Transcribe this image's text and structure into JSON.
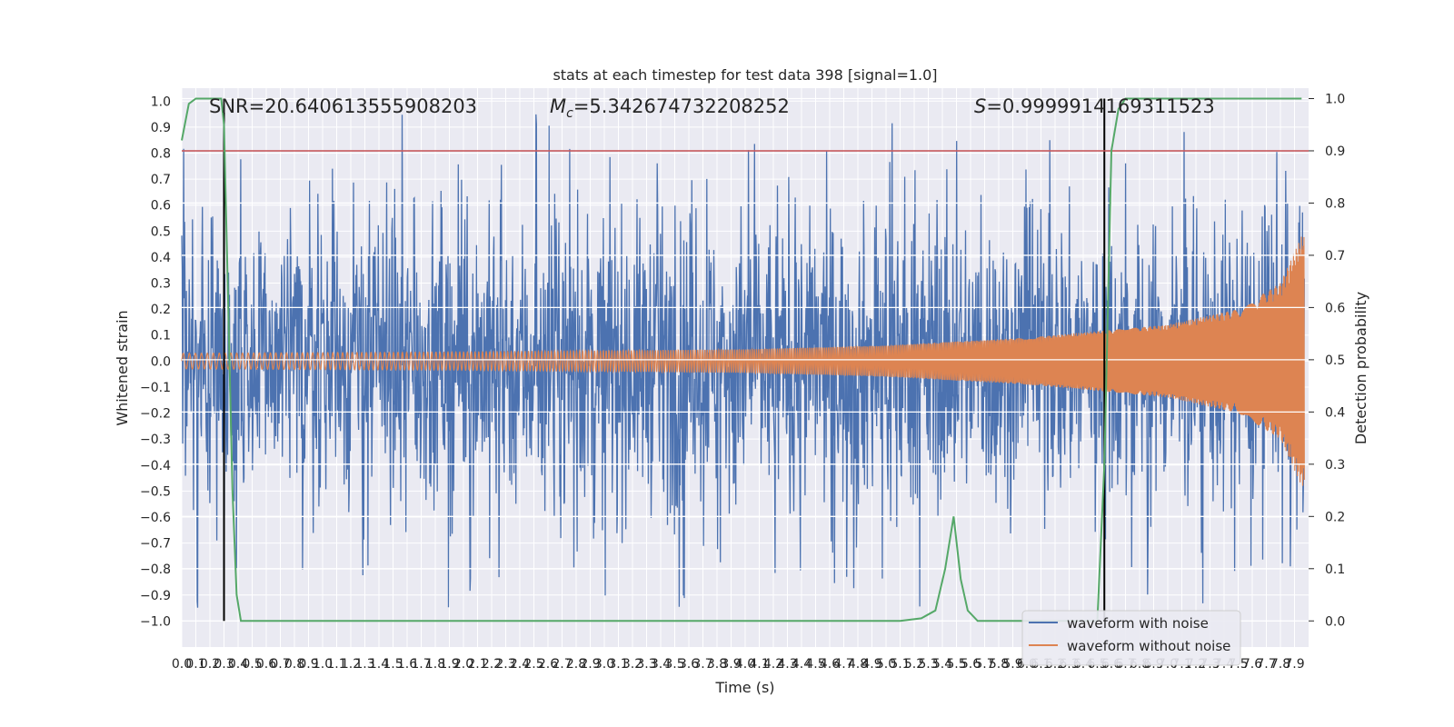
{
  "chart_data": {
    "type": "line",
    "title": "stats at each timestep for test data 398 [signal=1.0]",
    "xlabel": "Time (s)",
    "ylabel": "Whitened strain",
    "y2label": "Detection probability",
    "xlim": [
      0.0,
      8.0
    ],
    "ylim": [
      -1.1,
      1.05
    ],
    "y2lim": [
      -0.05,
      1.02
    ],
    "grid": true,
    "legend_position": "lower-right",
    "x_ticks": [
      "0.0",
      "0.1",
      "0.2",
      "0.3",
      "0.4",
      "0.5",
      "0.6",
      "0.7",
      "0.8",
      "0.9",
      "1.0",
      "1.1",
      "1.2",
      "1.3",
      "1.4",
      "1.5",
      "1.6",
      "1.7",
      "1.8",
      "1.9",
      "2.0",
      "2.1",
      "2.2",
      "2.3",
      "2.4",
      "2.5",
      "2.6",
      "2.7",
      "2.8",
      "2.9",
      "3.0",
      "3.1",
      "3.2",
      "3.3",
      "3.4",
      "3.5",
      "3.6",
      "3.7",
      "3.8",
      "3.9",
      "4.0",
      "4.1",
      "4.2",
      "4.3",
      "4.4",
      "4.5",
      "4.6",
      "4.7",
      "4.8",
      "4.9",
      "5.0",
      "5.1",
      "5.2",
      "5.3",
      "5.4",
      "5.5",
      "5.6",
      "5.7",
      "5.8",
      "5.9",
      "6.0",
      "6.1",
      "6.2",
      "6.3",
      "6.4",
      "6.5",
      "6.6",
      "6.7",
      "6.8",
      "6.9",
      "7.0",
      "7.1",
      "7.2",
      "7.3",
      "7.4",
      "7.5",
      "7.6",
      "7.7",
      "7.8",
      "7.9"
    ],
    "y_ticks": [
      "1.0",
      "0.9",
      "0.8",
      "0.7",
      "0.6",
      "0.5",
      "0.4",
      "0.3",
      "0.2",
      "0.1",
      "0.0",
      "−0.1",
      "−0.2",
      "−0.3",
      "−0.4",
      "−0.5",
      "−0.6",
      "−0.7",
      "−0.8",
      "−0.9",
      "−1.0"
    ],
    "y_tick_values": [
      1.0,
      0.9,
      0.8,
      0.7,
      0.6,
      0.5,
      0.4,
      0.3,
      0.2,
      0.1,
      0.0,
      -0.1,
      -0.2,
      -0.3,
      -0.4,
      -0.5,
      -0.6,
      -0.7,
      -0.8,
      -0.9,
      -1.0
    ],
    "y2_ticks": [
      "1.0",
      "0.9",
      "0.8",
      "0.7",
      "0.6",
      "0.5",
      "0.4",
      "0.3",
      "0.2",
      "0.1",
      "0.0"
    ],
    "y2_tick_values": [
      1.0,
      0.9,
      0.8,
      0.7,
      0.6,
      0.5,
      0.4,
      0.3,
      0.2,
      0.1,
      0.0
    ],
    "series": [
      {
        "name": "waveform with noise",
        "color": "#4c72b0",
        "axis": "left",
        "description": "whitened noisy strain, roughly -1.0 to 0.95"
      },
      {
        "name": "waveform without noise",
        "color": "#dd8452",
        "axis": "left",
        "description": "chirp amplitude rising from ~0.03 to ~0.5 at t=8s",
        "envelope": [
          [
            0.0,
            0.03
          ],
          [
            2.0,
            0.035
          ],
          [
            4.0,
            0.045
          ],
          [
            5.0,
            0.06
          ],
          [
            6.0,
            0.09
          ],
          [
            7.0,
            0.14
          ],
          [
            7.5,
            0.2
          ],
          [
            7.8,
            0.3
          ],
          [
            7.95,
            0.48
          ]
        ]
      },
      {
        "name": "detection probability",
        "color": "#55a868",
        "axis": "right",
        "legend": false,
        "points": [
          [
            0.0,
            0.92
          ],
          [
            0.05,
            0.99
          ],
          [
            0.1,
            1.0
          ],
          [
            0.28,
            1.0
          ],
          [
            0.3,
            0.95
          ],
          [
            0.33,
            0.6
          ],
          [
            0.36,
            0.25
          ],
          [
            0.39,
            0.05
          ],
          [
            0.42,
            0.0
          ],
          [
            5.1,
            0.0
          ],
          [
            5.25,
            0.005
          ],
          [
            5.35,
            0.02
          ],
          [
            5.42,
            0.1
          ],
          [
            5.48,
            0.2
          ],
          [
            5.53,
            0.08
          ],
          [
            5.58,
            0.02
          ],
          [
            5.65,
            0.0
          ],
          [
            6.5,
            0.0
          ],
          [
            6.55,
            0.3
          ],
          [
            6.6,
            0.9
          ],
          [
            6.65,
            0.98
          ],
          [
            6.7,
            1.0
          ],
          [
            7.95,
            1.0
          ]
        ]
      }
    ],
    "threshold": {
      "value_right_axis": 0.9,
      "color": "#c44e52"
    },
    "vertical_markers": [
      0.3,
      6.55
    ],
    "annotations": {
      "snr": "SNR=20.640613555908203",
      "mc_prefix": "M",
      "mc_sub": "c",
      "mc_value": "=5.342674732208252",
      "s_prefix": "S",
      "s_value": "=0.9999914169311523"
    },
    "legend": [
      "waveform with noise",
      "waveform without noise"
    ]
  }
}
